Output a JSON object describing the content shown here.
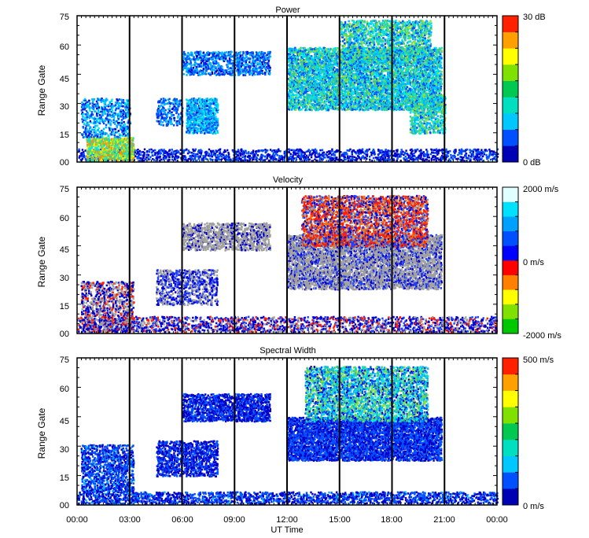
{
  "chart_data": [
    {
      "type": "heatmap",
      "title": "Power",
      "ylabel": "Range Gate",
      "xlabel": "",
      "xlim": [
        0,
        24
      ],
      "ylim": [
        0,
        75
      ],
      "x_ticks": [
        "00:00",
        "03:00",
        "06:00",
        "09:00",
        "12:00",
        "15:00",
        "18:00",
        "21:00",
        "00:00"
      ],
      "y_ticks": [
        "00",
        "15",
        "30",
        "45",
        "60",
        "75"
      ],
      "vertical_lines_hours": [
        3,
        6,
        9,
        12,
        15,
        18,
        21
      ],
      "colorbar": {
        "min": 0,
        "max": 30,
        "top_label": "30 dB",
        "bottom_label": "0 dB",
        "middle_label": "",
        "scale": [
          "#0000b4",
          "#0050ff",
          "#00c8ff",
          "#00e0c0",
          "#00c850",
          "#80e000",
          "#ffff00",
          "#ffa000",
          "#ff2000"
        ]
      },
      "scatter_colors": [
        "#0000c8",
        "#0050ff",
        "#00b4ff",
        "#00e6e6",
        "#40d080",
        "#90e030",
        "#f0f000",
        "#ff9000",
        "#ff2000"
      ],
      "regions": [
        {
          "t0": 0.0,
          "t1": 24.0,
          "r0": 0,
          "r1": 6,
          "density": 0.3,
          "value_mean": 3,
          "value_spread": 3
        },
        {
          "t0": 0.5,
          "t1": 3.2,
          "r0": 0,
          "r1": 12,
          "density": 0.65,
          "value_mean": 18,
          "value_spread": 8
        },
        {
          "t0": 0.2,
          "t1": 3.0,
          "r0": 12,
          "r1": 32,
          "density": 0.3,
          "value_mean": 7,
          "value_spread": 5
        },
        {
          "t0": 4.5,
          "t1": 6.0,
          "r0": 18,
          "r1": 32,
          "density": 0.35,
          "value_mean": 6,
          "value_spread": 4
        },
        {
          "t0": 6.2,
          "t1": 8.0,
          "r0": 14,
          "r1": 32,
          "density": 0.55,
          "value_mean": 8,
          "value_spread": 5
        },
        {
          "t0": 6.0,
          "t1": 11.0,
          "r0": 44,
          "r1": 56,
          "density": 0.4,
          "value_mean": 6,
          "value_spread": 4
        },
        {
          "t0": 12.0,
          "t1": 20.8,
          "r0": 26,
          "r1": 58,
          "density": 0.55,
          "value_mean": 11,
          "value_spread": 7
        },
        {
          "t0": 15.0,
          "t1": 20.2,
          "r0": 50,
          "r1": 72,
          "density": 0.4,
          "value_mean": 12,
          "value_spread": 8
        },
        {
          "t0": 19.0,
          "t1": 21.0,
          "r0": 14,
          "r1": 34,
          "density": 0.4,
          "value_mean": 12,
          "value_spread": 7
        }
      ]
    },
    {
      "type": "heatmap",
      "title": "Velocity",
      "ylabel": "Range Gate",
      "xlabel": "",
      "xlim": [
        0,
        24
      ],
      "ylim": [
        0,
        75
      ],
      "x_ticks": [
        "00:00",
        "03:00",
        "06:00",
        "09:00",
        "12:00",
        "15:00",
        "18:00",
        "21:00",
        "00:00"
      ],
      "y_ticks": [
        "00",
        "15",
        "30",
        "45",
        "60",
        "75"
      ],
      "vertical_lines_hours": [
        3,
        6,
        9,
        12,
        15,
        18,
        21
      ],
      "colorbar": {
        "min": -2000,
        "max": 2000,
        "top_label": "2000 m/s",
        "bottom_label": "-2000 m/s",
        "middle_label": "0 m/s",
        "scale": [
          "#00c800",
          "#80e000",
          "#ffff00",
          "#ff8000",
          "#ff0000",
          "#0000ff",
          "#0050ff",
          "#00a0ff",
          "#00e0ff",
          "#e0ffff"
        ]
      },
      "scatter_colors": [
        "#a0a0a0",
        "#0000d0",
        "#2040ff",
        "#ff2000",
        "#ff7000"
      ],
      "regions": [
        {
          "t0": 0.0,
          "t1": 24.0,
          "r0": 0,
          "r1": 8,
          "density": 0.3,
          "palette": [
            0,
            1,
            1,
            2,
            3
          ]
        },
        {
          "t0": 0.2,
          "t1": 3.2,
          "r0": 0,
          "r1": 26,
          "density": 0.35,
          "palette": [
            0,
            0,
            1,
            1,
            3
          ]
        },
        {
          "t0": 4.5,
          "t1": 8.0,
          "r0": 14,
          "r1": 32,
          "density": 0.35,
          "palette": [
            0,
            1,
            2
          ]
        },
        {
          "t0": 6.0,
          "t1": 11.0,
          "r0": 42,
          "r1": 56,
          "density": 0.45,
          "palette": [
            0,
            0,
            0,
            1
          ]
        },
        {
          "t0": 12.0,
          "t1": 20.8,
          "r0": 22,
          "r1": 50,
          "density": 0.55,
          "palette": [
            0,
            0,
            0,
            0,
            1,
            2
          ]
        },
        {
          "t0": 12.8,
          "t1": 20.0,
          "r0": 44,
          "r1": 70,
          "density": 0.45,
          "palette": [
            3,
            4,
            3,
            1,
            2,
            0
          ]
        }
      ]
    },
    {
      "type": "heatmap",
      "title": "Spectral Width",
      "ylabel": "Range Gate",
      "xlabel": "UT Time",
      "xlim": [
        0,
        24
      ],
      "ylim": [
        0,
        75
      ],
      "x_ticks": [
        "00:00",
        "03:00",
        "06:00",
        "09:00",
        "12:00",
        "15:00",
        "18:00",
        "21:00",
        "00:00"
      ],
      "y_ticks": [
        "00",
        "15",
        "30",
        "45",
        "60",
        "75"
      ],
      "vertical_lines_hours": [
        3,
        6,
        9,
        12,
        15,
        18,
        21
      ],
      "colorbar": {
        "min": 0,
        "max": 500,
        "top_label": "500 m/s",
        "bottom_label": "0 m/s",
        "middle_label": "",
        "scale": [
          "#0000b4",
          "#0050ff",
          "#00c8ff",
          "#00e0c0",
          "#00c850",
          "#80e000",
          "#ffff00",
          "#ffa000",
          "#ff2000"
        ]
      },
      "scatter_colors": [
        "#0000c8",
        "#0050ff",
        "#00b4ff",
        "#00e6e6",
        "#40d080",
        "#90e030",
        "#f0f000",
        "#ff9000",
        "#ff2000"
      ],
      "regions": [
        {
          "t0": 0.0,
          "t1": 24.0,
          "r0": 0,
          "r1": 6,
          "density": 0.35,
          "value_mean": 60,
          "value_spread": 60
        },
        {
          "t0": 0.2,
          "t1": 3.2,
          "r0": 6,
          "r1": 30,
          "density": 0.4,
          "value_mean": 70,
          "value_spread": 60
        },
        {
          "t0": 4.5,
          "t1": 8.0,
          "r0": 14,
          "r1": 32,
          "density": 0.45,
          "value_mean": 50,
          "value_spread": 40
        },
        {
          "t0": 6.0,
          "t1": 11.0,
          "r0": 42,
          "r1": 56,
          "density": 0.5,
          "value_mean": 50,
          "value_spread": 40
        },
        {
          "t0": 12.0,
          "t1": 20.8,
          "r0": 22,
          "r1": 44,
          "density": 0.6,
          "value_mean": 60,
          "value_spread": 50
        },
        {
          "t0": 13.0,
          "t1": 20.0,
          "r0": 42,
          "r1": 70,
          "density": 0.45,
          "value_mean": 180,
          "value_spread": 150
        }
      ]
    }
  ]
}
